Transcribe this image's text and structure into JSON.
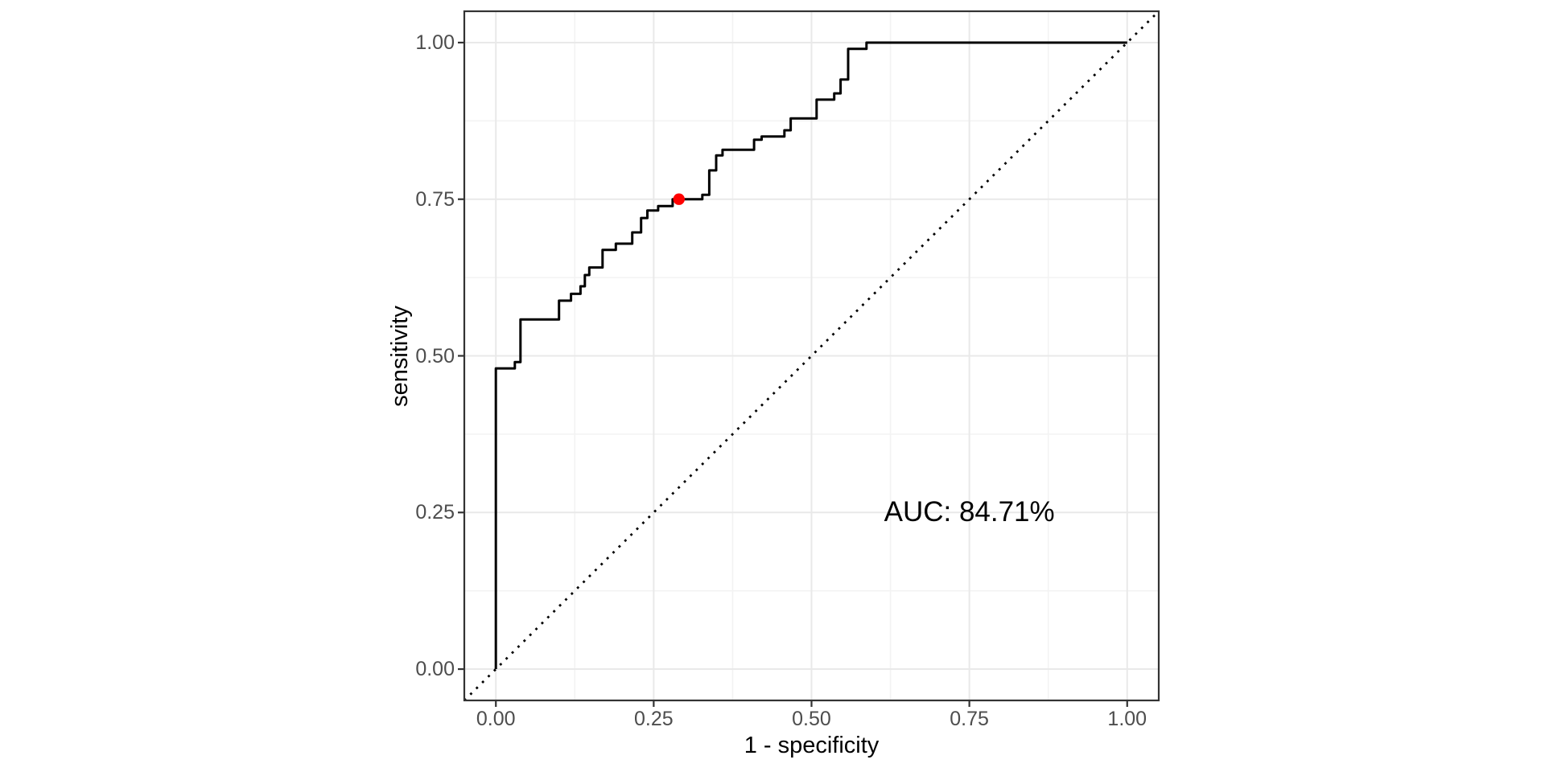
{
  "figure": {
    "background": "#ffffff",
    "panel": {
      "background": "#ffffff",
      "border_color": "#333333",
      "grid_major_color": "#e9e9e9",
      "grid_minor_color": "#f3f3f3",
      "tick_mark_color": "#333333",
      "tick_label_color": "#4d4d4d",
      "title_color": "#000000"
    }
  },
  "chart_data": {
    "type": "line",
    "subtype": "roc-step-curve",
    "title": "",
    "xlabel": "1 - specificity",
    "ylabel": "sensitivity",
    "xlim": [
      -0.05,
      1.05
    ],
    "ylim": [
      -0.05,
      1.05
    ],
    "grid": "major+minor",
    "legend": "none",
    "x_ticks": {
      "values": [
        0,
        0.25,
        0.5,
        0.75,
        1
      ],
      "labels": [
        "0.00",
        "0.25",
        "0.50",
        "0.75",
        "1.00"
      ]
    },
    "y_ticks": {
      "values": [
        0,
        0.25,
        0.5,
        0.75,
        1
      ],
      "labels": [
        "0.00",
        "0.25",
        "0.50",
        "0.75",
        "1.00"
      ]
    },
    "minor_tick_values": [
      0.125,
      0.375,
      0.625,
      0.875
    ],
    "series": [
      {
        "name": "ROC curve",
        "style": "step-hv",
        "color": "#000000",
        "points": [
          [
            0,
            0
          ],
          [
            0,
            0.48
          ],
          [
            0.03,
            0.49
          ],
          [
            0.039,
            0.558
          ],
          [
            0.1,
            0.588
          ],
          [
            0.119,
            0.599
          ],
          [
            0.134,
            0.611
          ],
          [
            0.141,
            0.629
          ],
          [
            0.148,
            0.641
          ],
          [
            0.169,
            0.669
          ],
          [
            0.19,
            0.679
          ],
          [
            0.216,
            0.697
          ],
          [
            0.23,
            0.72
          ],
          [
            0.24,
            0.732
          ],
          [
            0.257,
            0.739
          ],
          [
            0.28,
            0.75
          ],
          [
            0.327,
            0.757
          ],
          [
            0.338,
            0.796
          ],
          [
            0.349,
            0.82
          ],
          [
            0.359,
            0.829
          ],
          [
            0.409,
            0.845
          ],
          [
            0.421,
            0.85
          ],
          [
            0.457,
            0.86
          ],
          [
            0.467,
            0.879
          ],
          [
            0.508,
            0.909
          ],
          [
            0.536,
            0.919
          ],
          [
            0.546,
            0.941
          ],
          [
            0.558,
            0.99
          ],
          [
            0.587,
            1
          ],
          [
            1,
            1
          ]
        ]
      },
      {
        "name": "chance diagonal",
        "style": "dotted",
        "color": "#000000",
        "points": [
          [
            -0.05,
            -0.05
          ],
          [
            1.05,
            1.05
          ]
        ]
      }
    ],
    "best_threshold_point": {
      "x": 0.29,
      "y": 0.75,
      "color": "#ff0000"
    },
    "annotation": {
      "text": "AUC: 84.71%",
      "x": 0.75,
      "y": 0.25
    },
    "auc_percent": 84.71
  }
}
